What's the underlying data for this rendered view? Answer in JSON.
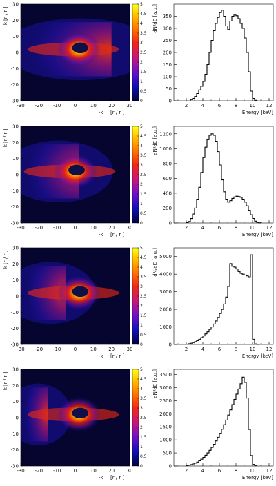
{
  "chart_data": [
    {
      "type": "heatmap",
      "panel": 1,
      "xlabel": "-k",
      "ylabel": "k",
      "xunit": "[r / r ]",
      "yunit": "[r / r ]",
      "xlim": [
        -30,
        30
      ],
      "ylim": [
        -30,
        30
      ],
      "xticks": [
        "-30",
        "-20",
        "-10",
        "0",
        "10",
        "20",
        "30"
      ],
      "yticks": [
        "30",
        "20",
        "10",
        "0",
        "-10",
        "-20",
        "-30"
      ],
      "colorbar_ticks": [
        "5",
        "4.5",
        "4",
        "3.5",
        "3",
        "2.5",
        "2",
        "1.5",
        "1",
        "0.5",
        "0"
      ],
      "colorbar_range": [
        0,
        5
      ],
      "band_sides": [
        -30,
        20
      ],
      "core_center": [
        2,
        2
      ]
    },
    {
      "type": "bar",
      "panel": 1,
      "xlabel": "Energy [keV]",
      "ylabel": "dN/dE [a.u.]",
      "xlim": [
        0.5,
        12.5
      ],
      "ylim": [
        0,
        400
      ],
      "xticks": [
        "2",
        "4",
        "6",
        "8",
        "10",
        "12"
      ],
      "yticks": [
        "0",
        "50",
        "100",
        "150",
        "200",
        "250",
        "300",
        "350"
      ],
      "bin_width": 0.25,
      "x_start": 2.5,
      "values": [
        5,
        10,
        18,
        30,
        45,
        60,
        80,
        110,
        150,
        200,
        250,
        290,
        320,
        345,
        365,
        375,
        350,
        310,
        295,
        330,
        350,
        355,
        352,
        340,
        320,
        300,
        260,
        200,
        120,
        40,
        10,
        2
      ]
    },
    {
      "type": "heatmap",
      "panel": 2,
      "xlabel": "-k",
      "ylabel": "k",
      "xunit": "[r / r ]",
      "yunit": "[r / r ]",
      "xlim": [
        -30,
        30
      ],
      "ylim": [
        -30,
        30
      ],
      "xticks": [
        "-30",
        "-20",
        "-10",
        "0",
        "10",
        "20",
        "30"
      ],
      "yticks": [
        "30",
        "20",
        "10",
        "0",
        "-10",
        "-20",
        "-30"
      ],
      "colorbar_ticks": [
        "5",
        "4.5",
        "4",
        "3.5",
        "3",
        "2.5",
        "2",
        "1.5",
        "1",
        "0.5",
        "0"
      ],
      "colorbar_range": [
        0,
        5
      ],
      "band_sides": [
        -30,
        2
      ],
      "core_center": [
        0,
        2
      ]
    },
    {
      "type": "bar",
      "panel": 2,
      "xlabel": "Energy [keV]",
      "ylabel": "dN/dE [a.u.]",
      "xlim": [
        0.5,
        12.5
      ],
      "ylim": [
        0,
        1300
      ],
      "xticks": [
        "2",
        "4",
        "6",
        "8",
        "10",
        "12"
      ],
      "yticks": [
        "0",
        "200",
        "400",
        "600",
        "800",
        "1000",
        "1200"
      ],
      "bin_width": 0.25,
      "x_start": 2.0,
      "values": [
        5,
        20,
        60,
        120,
        200,
        320,
        480,
        680,
        880,
        1020,
        1120,
        1180,
        1200,
        1180,
        1100,
        960,
        780,
        580,
        420,
        320,
        280,
        300,
        330,
        350,
        360,
        355,
        345,
        320,
        280,
        230,
        170,
        110,
        60,
        25,
        8,
        2
      ]
    },
    {
      "type": "heatmap",
      "panel": 3,
      "xlabel": "-k",
      "ylabel": "k",
      "xunit": "[r / r ]",
      "yunit": "[r / r ]",
      "xlim": [
        -30,
        30
      ],
      "ylim": [
        -30,
        30
      ],
      "xticks": [
        "-30",
        "-20",
        "-10",
        "0",
        "10",
        "20",
        "30"
      ],
      "yticks": [
        "30",
        "20",
        "10",
        "0",
        "-10",
        "-20",
        "-30"
      ],
      "colorbar_ticks": [
        "5",
        "4.5",
        "4",
        "3.5",
        "3",
        "2.5",
        "2",
        "1.5",
        "1",
        "0.5",
        "0"
      ],
      "colorbar_range": [
        0,
        5
      ],
      "band_sides": [
        -30,
        -5
      ],
      "core_center": [
        2,
        2
      ]
    },
    {
      "type": "bar",
      "panel": 3,
      "xlabel": "Energy [keV]",
      "ylabel": "dN/dE [a.u.]",
      "xlim": [
        0.5,
        12.5
      ],
      "ylim": [
        0,
        5500
      ],
      "xticks": [
        "2",
        "4",
        "6",
        "8",
        "10",
        "12"
      ],
      "yticks": [
        "0",
        "1000",
        "2000",
        "3000",
        "4000",
        "5000"
      ],
      "bin_width": 0.25,
      "x_start": 2.0,
      "values": [
        20,
        40,
        70,
        110,
        160,
        220,
        300,
        390,
        490,
        600,
        720,
        860,
        1000,
        1160,
        1340,
        1540,
        1760,
        2000,
        2300,
        2700,
        3300,
        4600,
        4450,
        4400,
        4300,
        4150,
        4050,
        4000,
        3950,
        3900,
        3850,
        5100,
        300,
        30,
        5
      ]
    },
    {
      "type": "heatmap",
      "panel": 4,
      "xlabel": "-k",
      "ylabel": "k",
      "xunit": "[r / r ]",
      "yunit": "[r / r ]",
      "xlim": [
        -30,
        30
      ],
      "ylim": [
        -30,
        30
      ],
      "xticks": [
        "-30",
        "-20",
        "-10",
        "0",
        "10",
        "20",
        "30"
      ],
      "yticks": [
        "30",
        "20",
        "10",
        "0",
        "-10",
        "-20",
        "-30"
      ],
      "colorbar_ticks": [
        "5",
        "4.5",
        "4",
        "3.5",
        "3",
        "2.5",
        "2",
        "1.5",
        "1",
        "0.5",
        "0"
      ],
      "colorbar_range": [
        0,
        5
      ],
      "band_sides": [
        -30,
        -15
      ],
      "core_center": [
        2,
        2
      ]
    },
    {
      "type": "bar",
      "panel": 4,
      "xlabel": "Energy [keV]",
      "ylabel": "dN/dE [a.u.]",
      "xlim": [
        0.5,
        12.5
      ],
      "ylim": [
        0,
        3700
      ],
      "xticks": [
        "2",
        "4",
        "6",
        "8",
        "10",
        "12"
      ],
      "yticks": [
        "0",
        "500",
        "1000",
        "1500",
        "2000",
        "2500",
        "3000",
        "3500"
      ],
      "bin_width": 0.25,
      "x_start": 2.0,
      "values": [
        20,
        35,
        55,
        80,
        110,
        150,
        200,
        260,
        330,
        410,
        500,
        600,
        710,
        830,
        960,
        1100,
        1250,
        1410,
        1580,
        1760,
        1950,
        2150,
        2350,
        2550,
        2750,
        2950,
        3150,
        3400,
        3200,
        2600,
        1400,
        400,
        60,
        10
      ]
    }
  ]
}
